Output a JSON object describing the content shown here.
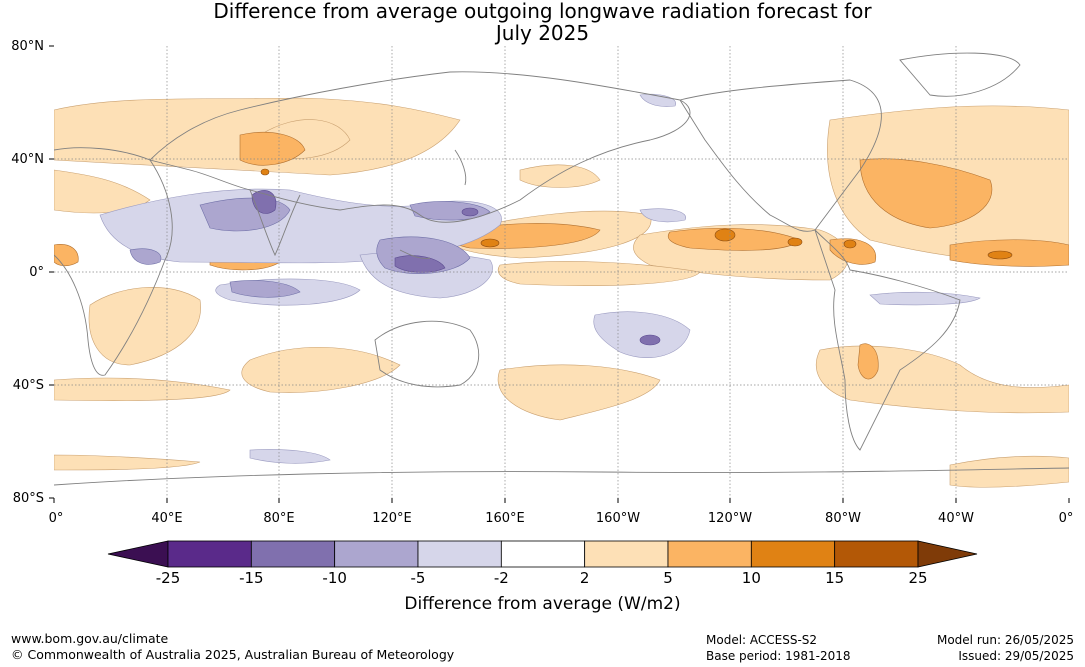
{
  "title": {
    "line1": "Difference from average outgoing longwave radiation forecast for",
    "line2": "July 2025"
  },
  "map": {
    "lat_labels": [
      "80°N",
      "40°N",
      "0°",
      "40°S",
      "80°S"
    ],
    "lon_labels": [
      "0°",
      "40°E",
      "80°E",
      "120°E",
      "160°E",
      "160°W",
      "120°W",
      "80°W",
      "40°W",
      "0°"
    ]
  },
  "colorbar": {
    "ticks": [
      "-25",
      "-15",
      "-10",
      "-5",
      "-2",
      "2",
      "5",
      "10",
      "15",
      "25"
    ],
    "colors": [
      "#3b0f52",
      "#5a2a8a",
      "#8070ae",
      "#aca6cf",
      "#d6d6ea",
      "#ffffff",
      "#fde0b6",
      "#fbb463",
      "#e08214",
      "#b35806",
      "#7f3b08"
    ],
    "label": "Difference from average (W/m2)"
  },
  "footer": {
    "website": "www.bom.gov.au/climate",
    "copyright": "© Commonwealth of Australia 2025, Australian Bureau of Meteorology",
    "model": "Model: ACCESS-S2",
    "base_period": "Base period: 1981-2018",
    "model_run": "Model run: 26/05/2025",
    "issued": "Issued: 29/05/2025"
  }
}
